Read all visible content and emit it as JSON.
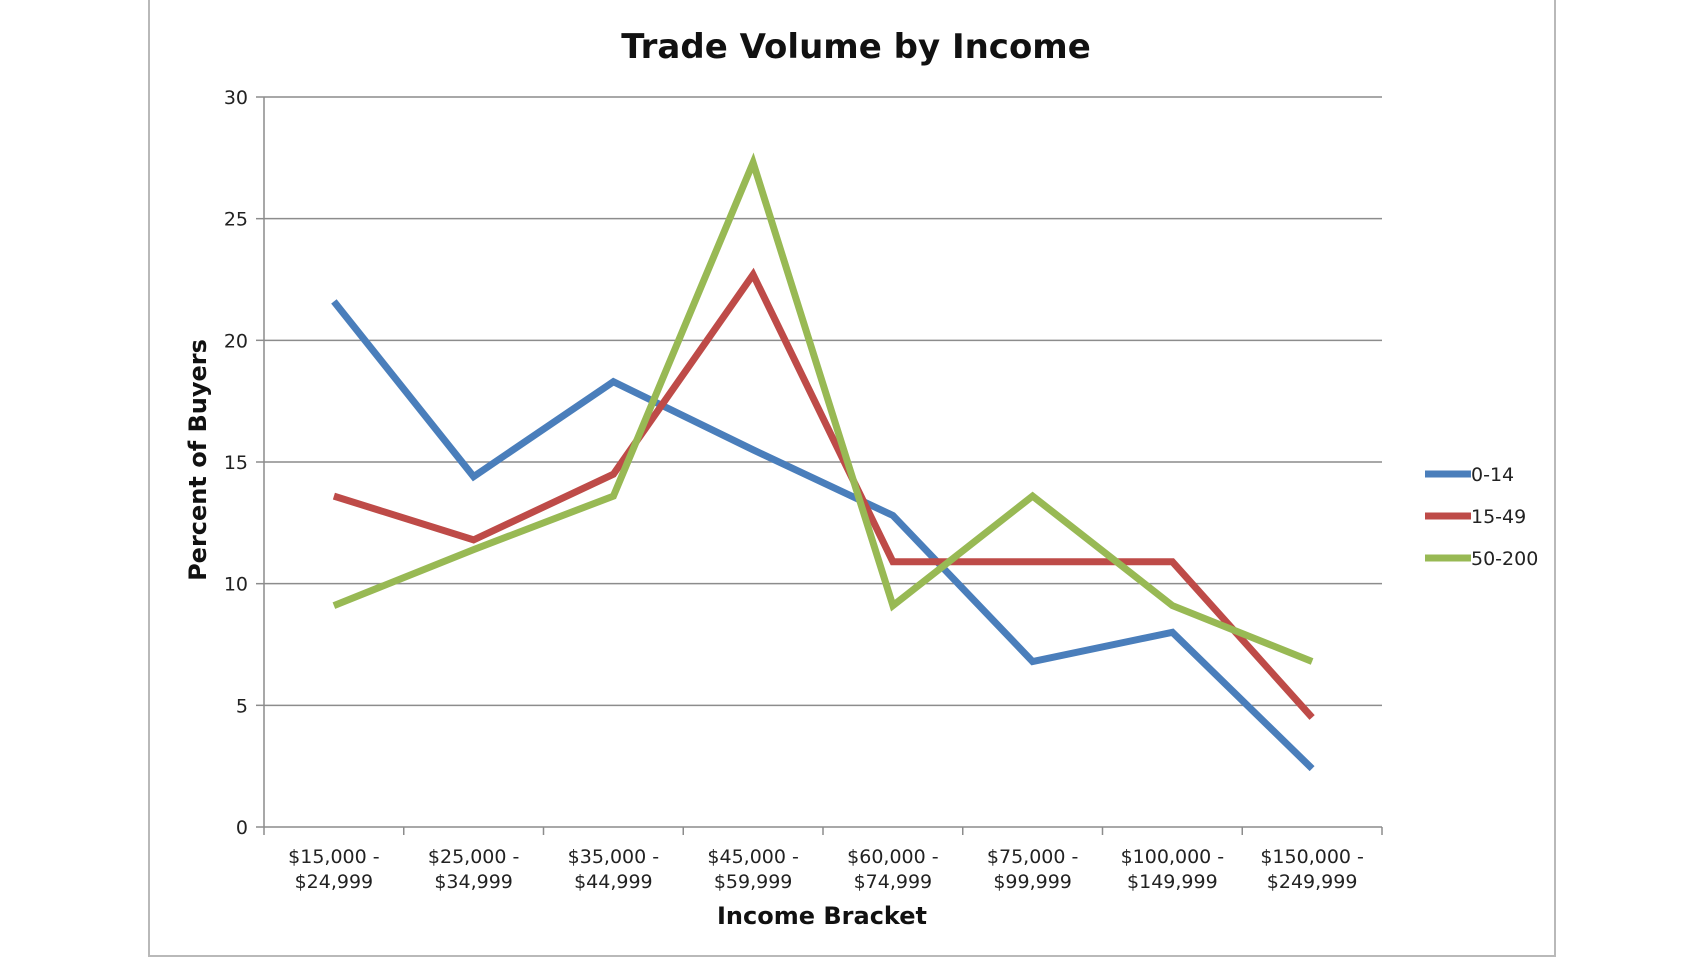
{
  "chart_data": {
    "type": "line",
    "title": "Trade Volume by Income",
    "xlabel": "Income Bracket",
    "ylabel": "Percent of Buyers",
    "categories": [
      [
        "$15,000 -",
        "$24,999"
      ],
      [
        "$25,000 -",
        "$34,999"
      ],
      [
        "$35,000 -",
        "$44,999"
      ],
      [
        "$45,000 -",
        "$59,999"
      ],
      [
        "$60,000 -",
        "$74,999"
      ],
      [
        "$75,000 -",
        "$99,999"
      ],
      [
        "$100,000 -",
        "$149,999"
      ],
      [
        "$150,000 -",
        "$249,999"
      ]
    ],
    "ylim": [
      0,
      30
    ],
    "yticks": [
      0,
      5,
      10,
      15,
      20,
      25,
      30
    ],
    "grid": true,
    "legend_position": "right",
    "series": [
      {
        "name": "0-14",
        "color": "#4a7ebb",
        "values": [
          21.6,
          14.4,
          18.3,
          15.5,
          12.8,
          6.8,
          8.0,
          2.4
        ]
      },
      {
        "name": "15-49",
        "color": "#be4b48",
        "values": [
          13.6,
          11.8,
          14.5,
          22.7,
          10.9,
          10.9,
          10.9,
          4.5
        ]
      },
      {
        "name": "50-200",
        "color": "#98b954",
        "values": [
          9.1,
          11.4,
          13.6,
          27.3,
          9.1,
          13.6,
          9.1,
          6.8
        ]
      }
    ]
  }
}
